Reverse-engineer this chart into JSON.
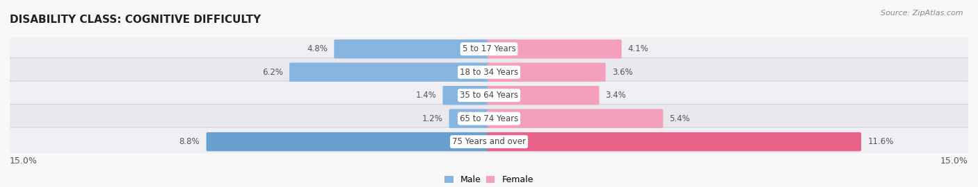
{
  "title": "DISABILITY CLASS: COGNITIVE DIFFICULTY",
  "source": "Source: ZipAtlas.com",
  "categories": [
    "5 to 17 Years",
    "18 to 34 Years",
    "35 to 64 Years",
    "65 to 74 Years",
    "75 Years and over"
  ],
  "male_values": [
    4.8,
    6.2,
    1.4,
    1.2,
    8.8
  ],
  "female_values": [
    4.1,
    3.6,
    3.4,
    5.4,
    11.6
  ],
  "x_max": 15.0,
  "male_colors": [
    "#85b5e0",
    "#85b5e0",
    "#85b5e0",
    "#85b5e0",
    "#6aa0d0"
  ],
  "female_colors": [
    "#f4a0bc",
    "#f4a0bc",
    "#f4a0bc",
    "#f4a0bc",
    "#e8628a"
  ],
  "row_colors": [
    "#f0f0f4",
    "#e8e8ee",
    "#f0f0f4",
    "#e8e8ee",
    "#f0f0f4"
  ],
  "row_border_color": "#d0d0d8",
  "label_pill_color": "#ffffff",
  "label_text_color": "#444444",
  "value_text_color": "#555555",
  "title_color": "#222222",
  "title_fontsize": 11,
  "source_fontsize": 8,
  "bar_label_fontsize": 8.5,
  "value_fontsize": 8.5,
  "axis_label_fontsize": 9,
  "legend_fontsize": 9,
  "fig_bg_color": "#f8f8f8"
}
